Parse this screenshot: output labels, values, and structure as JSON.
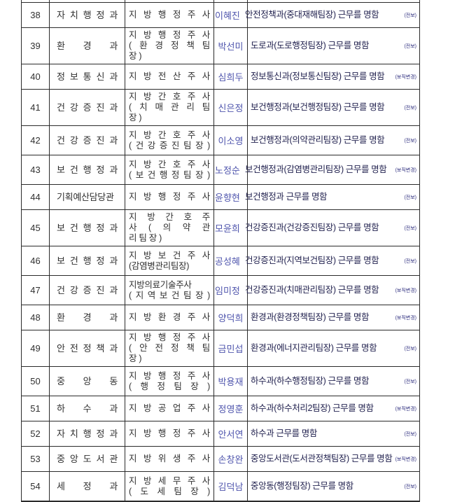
{
  "colors": {
    "border": "#2b2b2b",
    "plain_text": "#303030",
    "name_text": "#4f55ad",
    "assignment_text": "#232350",
    "tag_text": "#2d2d7e",
    "background": "#ffffff"
  },
  "table": {
    "rows": [
      {
        "no": "38",
        "department": "자 치 행 정 과",
        "position_lines": [
          "지 방 행 정 주 사"
        ],
        "name": "이혜진",
        "assignment": "안전정책과(중대재해팀장) 근무를 명함",
        "tag": "(전보)",
        "flush": true
      },
      {
        "no": "39",
        "department": "환 경 과",
        "position_lines": [
          "지 방 행 정 주 사",
          "( 환 경 정 책 팀",
          "장 )"
        ],
        "name": "박선미",
        "assignment": "도로과(도로행정팀장) 근무를 명함",
        "tag": "(전보)",
        "flush": false
      },
      {
        "no": "40",
        "department": "정 보 통 신 과",
        "position_lines": [
          "지 방 전 산 주 사"
        ],
        "name": "심희두",
        "assignment": "정보통신과(정보통신팀장) 근무를 명함",
        "tag": "(보직변경)",
        "flush": false
      },
      {
        "no": "41",
        "department": "건 강 증 진 과",
        "position_lines": [
          "지 방 간 호 주 사",
          "( 치 매 관 리 팀",
          "장 )"
        ],
        "name": "신은정",
        "assignment": "보건행정과(보건행정팀장) 근무를 명함",
        "tag": "(전보)",
        "flush": false
      },
      {
        "no": "42",
        "department": "건 강 증 진 과",
        "position_lines": [
          "지 방 간 호 주 사",
          "( 건 강 증 진 팀 장 )"
        ],
        "name": "이소영",
        "assignment": "보건행정과(의약관리팀장) 근무를 명함",
        "tag": "(전보)",
        "flush": false
      },
      {
        "no": "43",
        "department": "보 건 행 정 과",
        "position_lines": [
          "지 방 간 호 주 사",
          "( 보 건 행 정 팀 장 )"
        ],
        "name": "노정순",
        "assignment": "보건행정과(감염병관리팀장) 근무를 명함",
        "tag": "(보직변경)",
        "flush": true
      },
      {
        "no": "44",
        "department": "기획예산담당관",
        "position_lines": [
          "지 방 행 정 주 사"
        ],
        "name": "윤향현",
        "assignment": "보건행정과 근무를 명함",
        "tag": "(전보)",
        "flush": true
      },
      {
        "no": "45",
        "department": "보 건 행 정 과",
        "position_lines": [
          "지 방 간 호 주",
          "사    ( 의 약 관",
          "리 팀 장 )"
        ],
        "name": "모윤희",
        "assignment": "건강증진과(건강증진팀장) 근무를 명함",
        "tag": "(전보)",
        "flush": true
      },
      {
        "no": "46",
        "department": "보 건 행 정 과",
        "position_lines": [
          "지 방 보 건 주 사",
          "(감염병관리팀장)"
        ],
        "name": "공성혜",
        "assignment": "건강증진과(지역보건팀장) 근무를 명함",
        "tag": "(전보)",
        "flush": true
      },
      {
        "no": "47",
        "department": "건 강 증 진 과",
        "position_lines": [
          "지방의료기술주사",
          "( 지 역 보 건 팀 장 )"
        ],
        "name": "임미정",
        "assignment": "건강증진과(치매관리팀장) 근무를 명함",
        "tag": "(보직변경)",
        "flush": true
      },
      {
        "no": "48",
        "department": "환 경 과",
        "position_lines": [
          "지 방 환 경 주 사"
        ],
        "name": "양덕희",
        "assignment": "환경과(환경정책팀장) 근무를 명함",
        "tag": "(보직변경)",
        "flush": false
      },
      {
        "no": "49",
        "department": "안 전 정 책 과",
        "position_lines": [
          "지 방 행 정 주 사",
          "( 안 전 정 책 팀",
          "장 )"
        ],
        "name": "금민섭",
        "assignment": "환경과(에너지관리팀장) 근무를 명함",
        "tag": "(전보)",
        "flush": false
      },
      {
        "no": "50",
        "department": "중 앙 동",
        "position_lines": [
          "지 방 행 정 주 사",
          "( 행 정 팀 장 )"
        ],
        "name": "박용재",
        "assignment": "하수과(하수행정팀장) 근무를 명함",
        "tag": "(전보)",
        "flush": false
      },
      {
        "no": "51",
        "department": "하 수 과",
        "position_lines": [
          "지 방 공 업 주 사"
        ],
        "name": "정영훈",
        "assignment": "하수과(하수처리2팀장) 근무를 명함",
        "tag": "(보직변경)",
        "flush": false
      },
      {
        "no": "52",
        "department": "자 치 행 정 과",
        "position_lines": [
          "지 방 행 정 주 사"
        ],
        "name": "안서연",
        "assignment": "하수과 근무를 명함",
        "tag": "(전보)",
        "flush": false
      },
      {
        "no": "53",
        "department": "중 앙 도 서 관",
        "position_lines": [
          "지 방 위 생 주 사"
        ],
        "name": "손창완",
        "assignment": "중앙도서관(도서관정책팀장) 근무를 명함",
        "tag": "(보직변경)",
        "flush": false
      },
      {
        "no": "54",
        "department": "세 정 과",
        "position_lines": [
          "지 방 세 무 주 사",
          "( 도 세 팀 장 )"
        ],
        "name": "김덕남",
        "assignment": "중앙동(행정팀장) 근무를 명함",
        "tag": "(전보)",
        "flush": false
      }
    ]
  }
}
